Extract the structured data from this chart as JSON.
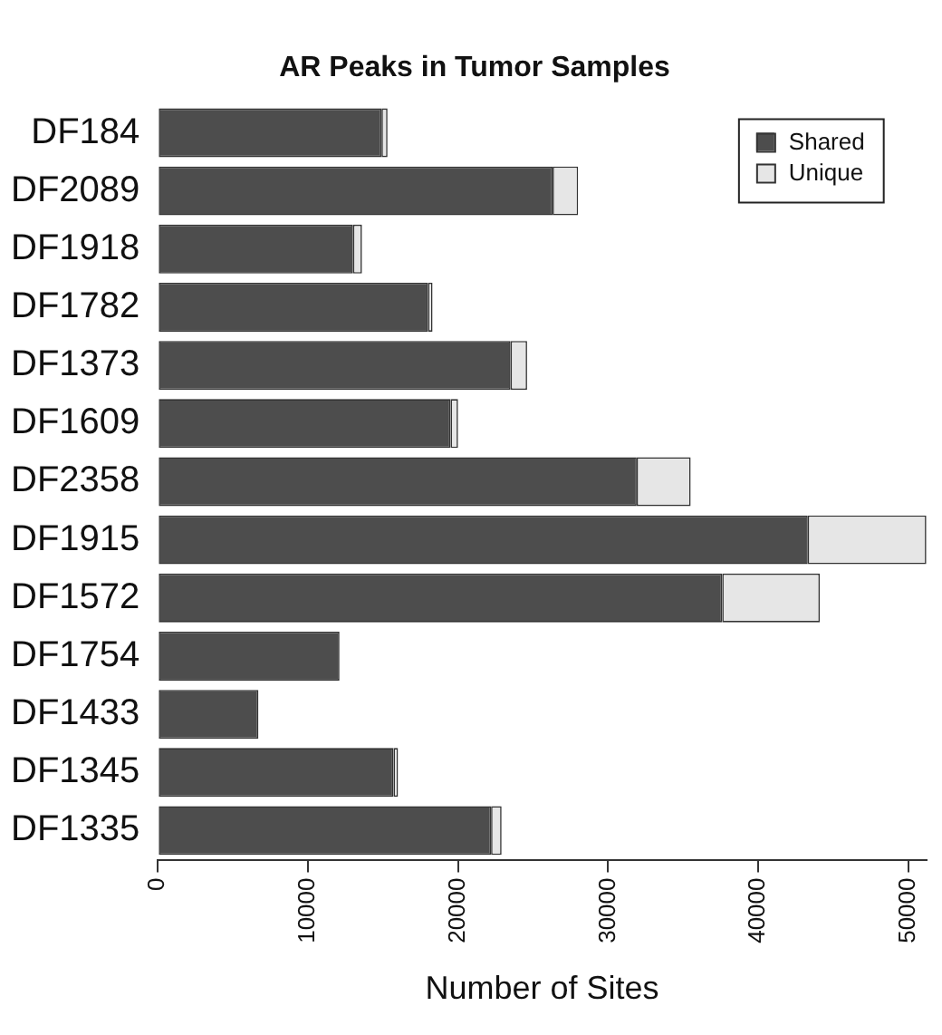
{
  "chart_data": {
    "type": "bar",
    "title": "AR Peaks in Tumor Samples",
    "xlabel": "Number of Sites",
    "orientation": "horizontal",
    "stacked": true,
    "legend": "top right",
    "grid": false,
    "categories": [
      "DF184",
      "DF2089",
      "DF1918",
      "DF1782",
      "DF1373",
      "DF1609",
      "DF2358",
      "DF1915",
      "DF1572",
      "DF1754",
      "DF1433",
      "DF1345",
      "DF1335"
    ],
    "series": [
      {
        "name": "Shared",
        "color": "#4d4d4d",
        "values": [
          14900,
          26300,
          13000,
          18000,
          23500,
          19500,
          31900,
          43300,
          37600,
          12100,
          6700,
          15700,
          22200
        ]
      },
      {
        "name": "Unique",
        "color": "#e6e6e6",
        "values": [
          400,
          1700,
          600,
          300,
          1100,
          500,
          3600,
          7900,
          6500,
          0,
          0,
          300,
          700
        ]
      }
    ],
    "xlim": [
      0,
      51200
    ],
    "xticks": [
      0,
      10000,
      20000,
      30000,
      40000,
      50000
    ]
  }
}
